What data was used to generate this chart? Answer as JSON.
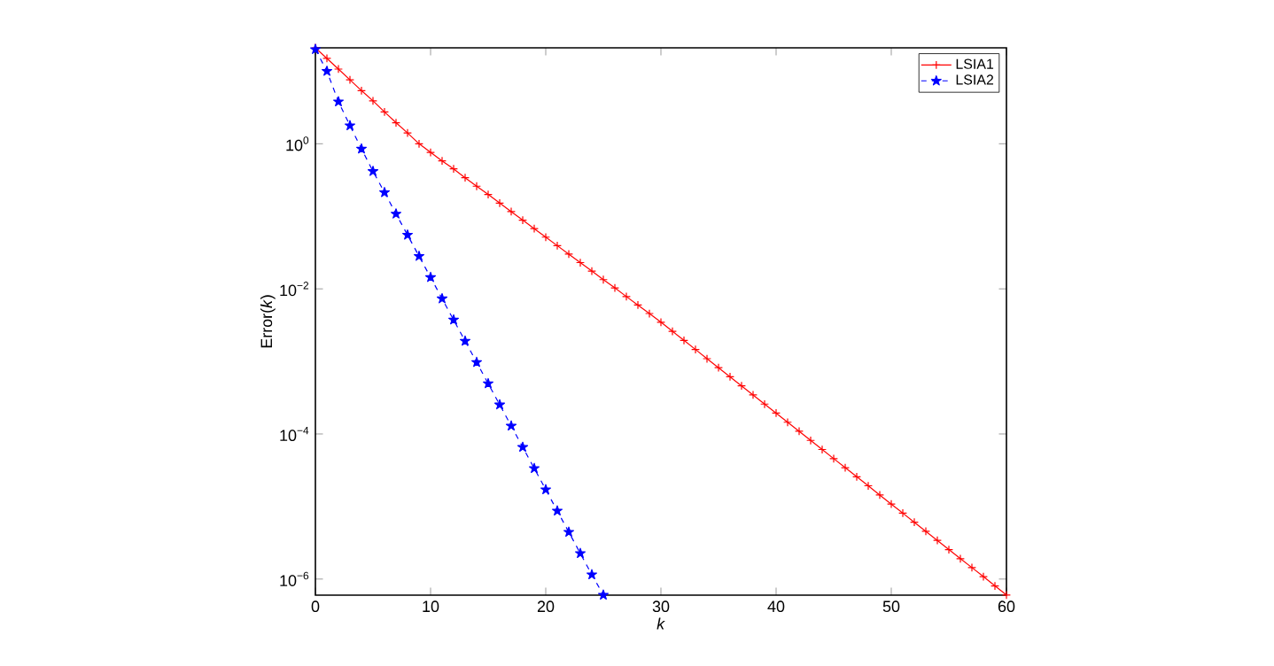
{
  "chart_data": {
    "type": "line",
    "xlabel": "*k*",
    "ylabel": "Error(*k*)",
    "log": "y",
    "legend": "top right",
    "grid": false,
    "xlim": [
      0,
      60
    ],
    "xticks": [
      0,
      10,
      20,
      30,
      40,
      50,
      60
    ],
    "ylim": [
      6e-07,
      21
    ],
    "yticks": [
      {
        "value": 1e-06,
        "label": "10$^{−6}$"
      },
      {
        "value": 0.0001,
        "label": "10$^{−4}$"
      },
      {
        "value": 0.01,
        "label": "10$^{−2}$"
      },
      {
        "value": 1,
        "label": "10$^{0}$"
      }
    ],
    "series": [
      {
        "name": "LSIA1",
        "color": "#ff0000",
        "marker": "cross",
        "line_style": "solid",
        "x": [
          0,
          1,
          2,
          3,
          4,
          5,
          6,
          7,
          8,
          9,
          10,
          11,
          12,
          13,
          14,
          15,
          16,
          17,
          18,
          19,
          20,
          21,
          22,
          23,
          24,
          25,
          26,
          27,
          28,
          29,
          30,
          31,
          32,
          33,
          34,
          35,
          36,
          37,
          38,
          39,
          40,
          41,
          42,
          43,
          44,
          45,
          46,
          47,
          48,
          49,
          50,
          51,
          52,
          53,
          54,
          55,
          56,
          57,
          58,
          59,
          60
        ],
        "values": [
          21,
          15,
          10.7,
          7.6,
          5.4,
          3.9,
          2.75,
          1.95,
          1.41,
          1.0,
          0.76,
          0.58,
          0.45,
          0.34,
          0.26,
          0.2,
          0.152,
          0.116,
          0.0885,
          0.0676,
          0.0516,
          0.0394,
          0.0301,
          0.023,
          0.0176,
          0.0134,
          0.0103,
          0.00783,
          0.00598,
          0.00457,
          0.00347,
          0.0026,
          0.00195,
          0.00146,
          0.00109,
          0.000818,
          0.000614,
          0.00046,
          0.000345,
          0.000258,
          0.000194,
          0.000145,
          0.000109,
          8.15e-05,
          6.11e-05,
          4.57e-05,
          3.43e-05,
          2.57e-05,
          1.93e-05,
          1.44e-05,
          1.08e-05,
          8.11e-06,
          6.07e-06,
          4.55e-06,
          3.41e-06,
          2.55e-06,
          1.91e-06,
          1.44e-06,
          1.08e-06,
          8.05e-07,
          6.03e-07
        ]
      },
      {
        "name": "LSIA2",
        "color": "#0000ff",
        "marker": "star",
        "line_style": "dashed",
        "x": [
          0,
          1,
          2,
          3,
          4,
          5,
          6,
          7,
          8,
          9,
          10,
          11,
          12,
          13,
          14,
          15,
          16,
          17,
          18,
          19,
          20,
          21,
          22,
          23,
          24,
          25
        ],
        "values": [
          20,
          10,
          3.8,
          1.78,
          0.85,
          0.417,
          0.213,
          0.108,
          0.0553,
          0.0282,
          0.0144,
          0.00733,
          0.00374,
          0.00191,
          0.000972,
          0.000495,
          0.000253,
          0.000129,
          6.57e-05,
          3.35e-05,
          1.71e-05,
          8.71e-06,
          4.44e-06,
          2.26e-06,
          1.15e-06,
          6.03e-07
        ]
      }
    ]
  }
}
